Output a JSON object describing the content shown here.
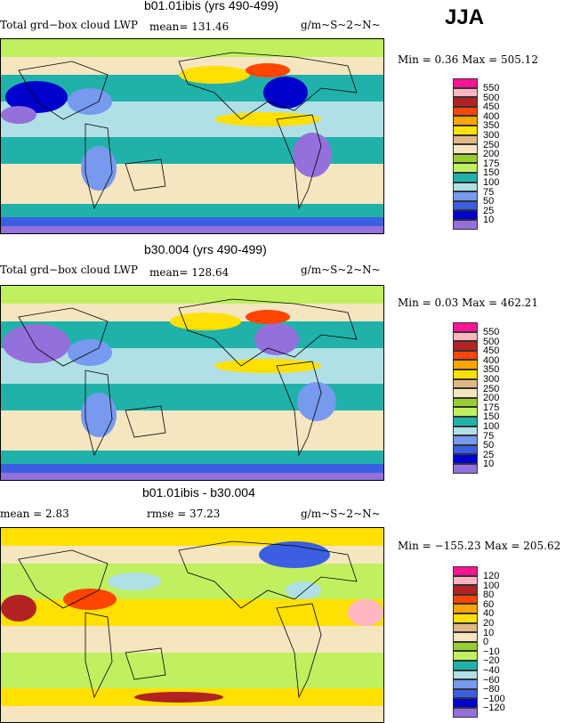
{
  "season": "JJA",
  "colors": {
    "l16": "#ff1493",
    "l15": "#ffb6c1",
    "l14": "#b22222",
    "l13": "#ff4500",
    "l12": "#ffa500",
    "l11": "#ffe000",
    "l10": "#deb887",
    "l9": "#f5e6c0",
    "l8": "#9acd32",
    "l7": "#c0f060",
    "l6": "#20b2aa",
    "l5": "#b0e0e6",
    "l4": "#7799ee",
    "l3": "#3b5fe0",
    "l2": "#0000cd",
    "l1": "#9370db"
  },
  "panels": [
    {
      "title": "b01.01ibis (yrs 490-499)",
      "variable": "Total grd−box cloud LWP",
      "mean_label": "mean= 131.46",
      "units": "g/m~S~2~N~",
      "minmax": "Min =    0.36 Max = 505.12"
    },
    {
      "title": "b30.004 (yrs 490-499)",
      "variable": "Total grd−box cloud LWP",
      "mean_label": "mean= 128.64",
      "units": "g/m~S~2~N~",
      "minmax": "Min =   0.03 Max = 462.21"
    },
    {
      "title": "b01.01ibis - b30.004",
      "mean_label": "mean =    2.83",
      "rmse_label": "rmse =   37.23",
      "units": "g/m~S~2~N~",
      "minmax": "Min = −155.23 Max = 205.62"
    }
  ],
  "chart_data": {
    "type": "heatmap",
    "levels_abs": [
      "550",
      "500",
      "450",
      "400",
      "350",
      "300",
      "250",
      "200",
      "175",
      "150",
      "100",
      "75",
      "50",
      "25",
      "10"
    ],
    "levels_diff": [
      "120",
      "100",
      "80",
      "60",
      "40",
      "20",
      "10",
      "0",
      "−10",
      "−20",
      "−40",
      "−60",
      "−80",
      "−100",
      "−120"
    ],
    "stats": [
      {
        "mean": 131.46,
        "min": 0.36,
        "max": 505.12
      },
      {
        "mean": 128.64,
        "min": 0.03,
        "max": 462.21
      },
      {
        "mean": 2.83,
        "rmse": 37.23,
        "min": -155.23,
        "max": 205.62
      }
    ]
  }
}
